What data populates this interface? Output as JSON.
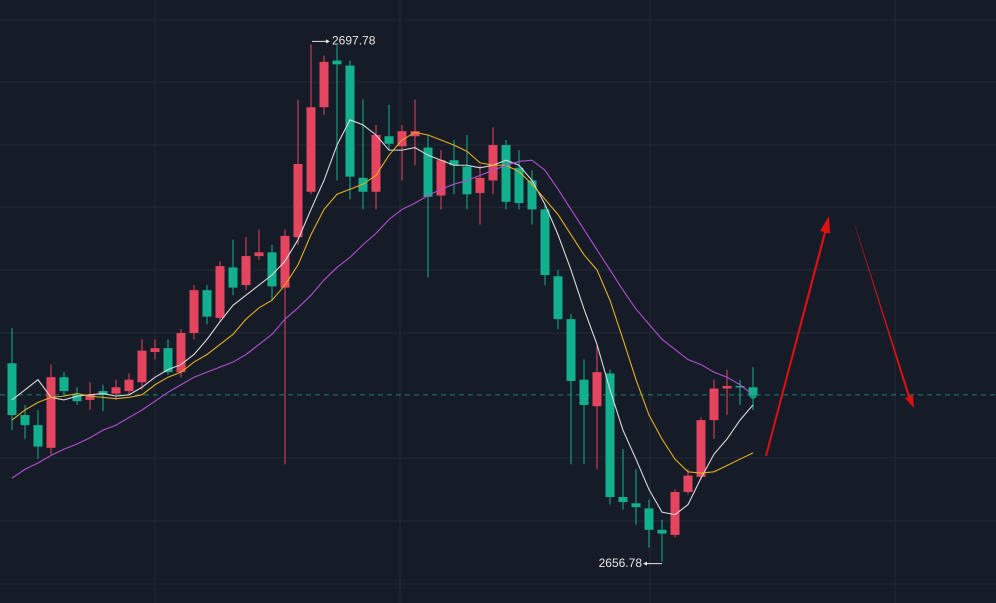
{
  "chart_data": {
    "type": "candlestick",
    "open": [
      2672.5,
      2668.4,
      2667.6,
      2665.8,
      2671.4,
      2670.0,
      2669.6,
      2670.3,
      2670.1,
      2670.3,
      2671.0,
      2673.4,
      2673.7,
      2671.8,
      2674.9,
      2678.3,
      2676.1,
      2680.1,
      2678.7,
      2681.0,
      2681.3,
      2678.5,
      2682.5,
      2686.1,
      2692.8,
      2696.5,
      2696.1,
      2687.2,
      2686.1,
      2690.5,
      2689.7,
      2690.5,
      2689.6,
      2685.8,
      2688.6,
      2688.1,
      2686.0,
      2687.0,
      2689.8,
      2688.0,
      2687.0,
      2684.7,
      2679.4,
      2676.0,
      2671.2,
      2669.1,
      2671.7,
      2661.9,
      2661.4,
      2661.0,
      2659.3,
      2658.9,
      2662.3,
      2663.5,
      2668.0,
      2670.5,
      2670.7,
      2670.6
    ],
    "high": [
      2675.3,
      2669.2,
      2668.8,
      2672.4,
      2671.8,
      2670.6,
      2671.0,
      2670.8,
      2671.2,
      2671.7,
      2674.4,
      2674.4,
      2674.4,
      2675.2,
      2678.7,
      2678.7,
      2680.6,
      2682.3,
      2682.5,
      2683.1,
      2681.9,
      2683.1,
      2693.4,
      2697.78,
      2696.9,
      2697.7,
      2696.5,
      2693.4,
      2691.4,
      2693.0,
      2691.4,
      2693.4,
      2690.6,
      2689.4,
      2690.2,
      2690.6,
      2688.2,
      2691.2,
      2690.2,
      2689.4,
      2687.8,
      2685.1,
      2679.9,
      2676.4,
      2672.8,
      2674.0,
      2672.0,
      2665.7,
      2664.1,
      2661.7,
      2660.1,
      2662.5,
      2664.1,
      2668.2,
      2671.2,
      2672.0,
      2671.2,
      2672.2
    ],
    "low": [
      2667.2,
      2666.5,
      2664.9,
      2665.3,
      2670.0,
      2669.2,
      2668.8,
      2668.7,
      2669.6,
      2670.0,
      2670.4,
      2672.8,
      2671.6,
      2671.4,
      2674.4,
      2675.6,
      2675.8,
      2677.9,
      2678.3,
      2680.7,
      2677.5,
      2664.5,
      2681.9,
      2685.9,
      2692.2,
      2687.0,
      2685.5,
      2684.7,
      2684.7,
      2689.4,
      2687.0,
      2688.2,
      2679.3,
      2684.7,
      2685.9,
      2684.7,
      2683.5,
      2685.9,
      2684.7,
      2684.7,
      2683.5,
      2678.7,
      2675.2,
      2664.5,
      2664.5,
      2664.1,
      2661.3,
      2660.9,
      2659.7,
      2657.9,
      2656.78,
      2658.7,
      2662.1,
      2663.3,
      2666.5,
      2668.4,
      2669.2,
      2668.8
    ],
    "close": [
      2668.4,
      2667.6,
      2665.9,
      2671.4,
      2670.3,
      2669.5,
      2670.0,
      2670.0,
      2670.6,
      2671.2,
      2673.5,
      2673.7,
      2671.8,
      2674.9,
      2678.3,
      2676.2,
      2680.2,
      2678.5,
      2681.0,
      2681.3,
      2678.6,
      2682.6,
      2688.3,
      2692.8,
      2696.4,
      2696.2,
      2687.3,
      2686.1,
      2690.6,
      2689.9,
      2690.9,
      2690.9,
      2685.7,
      2688.6,
      2688.2,
      2685.9,
      2687.2,
      2689.8,
      2685.3,
      2685.2,
      2684.7,
      2679.5,
      2676.0,
      2671.1,
      2669.2,
      2671.8,
      2661.9,
      2661.5,
      2661.1,
      2659.3,
      2659.0,
      2662.3,
      2663.6,
      2668.0,
      2670.5,
      2670.7,
      2670.6,
      2670.0
    ],
    "up_color": "#e5455f",
    "down_color": "#12b08e",
    "lines": [
      {
        "color": "#d9d9d9",
        "values": [
          2669.6,
          2670.4,
          2671.2,
          2669.8,
          2669.6,
          2669.9,
          2670.0,
          2670.1,
          2669.9,
          2670.0,
          2670.6,
          2671.4,
          2672.0,
          2672.4,
          2673.2,
          2674.4,
          2675.8,
          2677.1,
          2677.9,
          2678.7,
          2679.5,
          2680.6,
          2682.3,
          2684.7,
          2687.0,
          2689.8,
          2691.8,
          2691.4,
          2690.6,
          2689.4,
          2689.4,
          2689.6,
          2689.0,
          2688.6,
          2688.2,
          2688.2,
          2688.0,
          2688.2,
          2688.6,
          2688.2,
          2687.0,
          2685.1,
          2682.7,
          2679.9,
          2676.8,
          2674.0,
          2670.4,
          2667.2,
          2664.9,
          2662.5,
          2660.7,
          2660.5,
          2661.3,
          2663.4,
          2665.3,
          2666.5,
          2668.0,
          2669.2
        ]
      },
      {
        "color": "#e2ae1f",
        "values": [
          2668.0,
          2668.8,
          2669.4,
          2669.8,
          2669.9,
          2670.1,
          2669.9,
          2669.8,
          2669.7,
          2669.8,
          2670.0,
          2670.8,
          2671.4,
          2671.8,
          2672.6,
          2673.2,
          2674.0,
          2674.8,
          2676.0,
          2676.9,
          2677.5,
          2678.7,
          2680.3,
          2682.7,
          2684.7,
          2685.9,
          2686.3,
          2686.7,
          2687.4,
          2689.0,
          2690.2,
          2690.8,
          2690.6,
          2690.2,
          2689.8,
          2689.3,
          2688.4,
          2688.2,
          2688.2,
          2687.7,
          2686.7,
          2685.5,
          2684.3,
          2682.7,
          2681.1,
          2679.9,
          2677.5,
          2674.4,
          2671.2,
          2668.4,
          2666.5,
          2664.9,
          2663.9,
          2663.8,
          2663.9,
          2664.4,
          2664.9,
          2665.4
        ]
      },
      {
        "color": "#b04fd0",
        "values": [
          2663.4,
          2664.1,
          2664.6,
          2665.2,
          2665.7,
          2666.1,
          2666.6,
          2667.2,
          2667.6,
          2668.2,
          2668.8,
          2669.5,
          2670.2,
          2670.8,
          2671.4,
          2671.8,
          2672.2,
          2672.6,
          2673.2,
          2674.0,
          2674.8,
          2676.0,
          2676.9,
          2677.9,
          2679.1,
          2680.1,
          2680.9,
          2681.9,
          2682.8,
          2683.9,
          2684.7,
          2685.2,
          2685.8,
          2686.3,
          2686.7,
          2687.0,
          2687.4,
          2687.8,
          2688.2,
          2688.5,
          2688.6,
          2687.8,
          2686.3,
          2684.7,
          2683.1,
          2681.5,
          2679.9,
          2678.3,
          2676.8,
          2675.6,
          2674.4,
          2673.6,
          2672.8,
          2672.4,
          2671.8,
          2671.4,
          2670.8,
          2670.0
        ]
      }
    ],
    "ylim": [
      2653.5,
      2701.3
    ],
    "annotations": [
      "2697.78",
      "2656.78"
    ]
  }
}
